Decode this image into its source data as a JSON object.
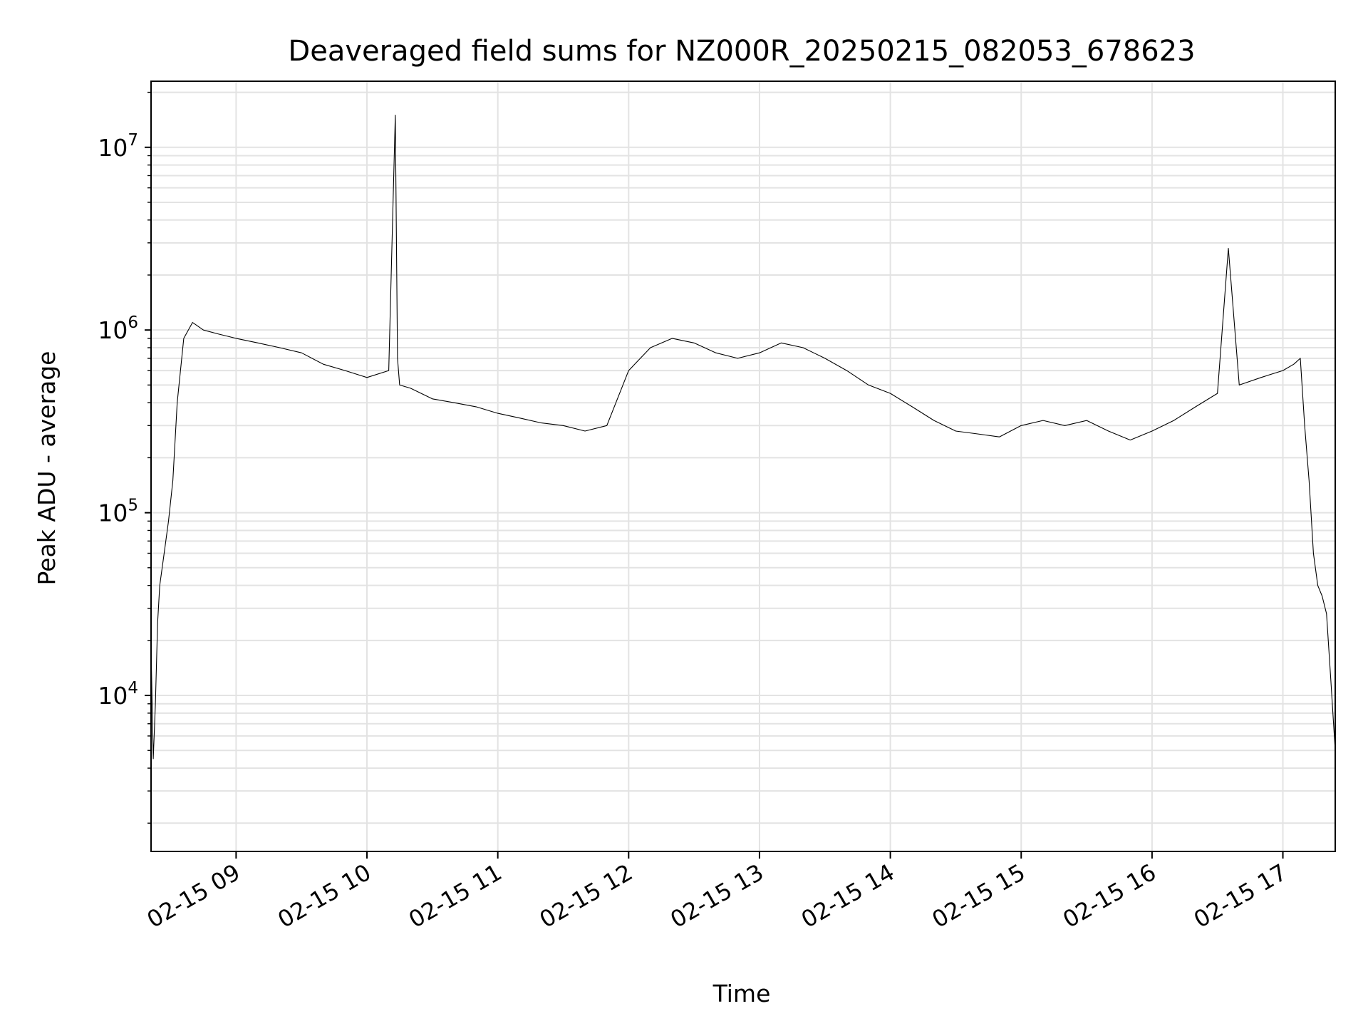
{
  "chart_data": {
    "type": "line",
    "title": "Deaveraged field sums for NZ000R_20250215_082053_678623",
    "xlabel": "Time",
    "ylabel": "Peak ADU - average",
    "x_scale": "time",
    "y_scale": "log",
    "xlim": [
      "2025-02-15 08:21",
      "2025-02-15 17:24"
    ],
    "ylim": [
      1400,
      23000000
    ],
    "x_ticks": [
      {
        "time": "2025-02-15 09:00",
        "label": "02-15 09"
      },
      {
        "time": "2025-02-15 10:00",
        "label": "02-15 10"
      },
      {
        "time": "2025-02-15 11:00",
        "label": "02-15 11"
      },
      {
        "time": "2025-02-15 12:00",
        "label": "02-15 12"
      },
      {
        "time": "2025-02-15 13:00",
        "label": "02-15 13"
      },
      {
        "time": "2025-02-15 14:00",
        "label": "02-15 14"
      },
      {
        "time": "2025-02-15 15:00",
        "label": "02-15 15"
      },
      {
        "time": "2025-02-15 16:00",
        "label": "02-15 16"
      },
      {
        "time": "2025-02-15 17:00",
        "label": "02-15 17"
      }
    ],
    "y_ticks": [
      {
        "value": 10000,
        "base": "10",
        "exp": "4"
      },
      {
        "value": 100000,
        "base": "10",
        "exp": "5"
      },
      {
        "value": 1000000,
        "base": "10",
        "exp": "6"
      },
      {
        "value": 10000000,
        "base": "10",
        "exp": "7"
      }
    ],
    "grid": true,
    "line_color": "#000000",
    "series": [
      {
        "x": [
          "08:21",
          "08:22",
          "08:23",
          "08:24",
          "08:25",
          "08:27",
          "08:29",
          "08:31",
          "08:33",
          "08:36",
          "08:40",
          "08:45",
          "08:52",
          "09:00",
          "09:10",
          "09:20",
          "09:30",
          "09:40",
          "09:50",
          "10:00",
          "10:10",
          "10:13",
          "10:14",
          "10:15",
          "10:20",
          "10:30",
          "10:40",
          "10:50",
          "11:00",
          "11:10",
          "11:20",
          "11:30",
          "11:40",
          "11:50",
          "12:00",
          "12:10",
          "12:20",
          "12:30",
          "12:40",
          "12:50",
          "13:00",
          "13:10",
          "13:20",
          "13:30",
          "13:40",
          "13:50",
          "14:00",
          "14:10",
          "14:20",
          "14:30",
          "14:40",
          "14:50",
          "15:00",
          "15:10",
          "15:20",
          "15:30",
          "15:40",
          "15:50",
          "16:00",
          "16:10",
          "16:20",
          "16:30",
          "16:35",
          "16:40",
          "16:50",
          "17:00",
          "17:05",
          "17:08",
          "17:10",
          "17:12",
          "17:14",
          "17:16",
          "17:18",
          "17:20",
          "17:22",
          "17:24"
        ],
        "y": [
          18000,
          4500,
          9000,
          25000,
          40000,
          60000,
          90000,
          150000,
          400000,
          900000,
          1100000,
          1000000,
          950000,
          900000,
          850000,
          800000,
          750000,
          650000,
          600000,
          550000,
          600000,
          15000000,
          700000,
          500000,
          480000,
          420000,
          400000,
          380000,
          350000,
          330000,
          310000,
          300000,
          280000,
          300000,
          600000,
          800000,
          900000,
          850000,
          750000,
          700000,
          750000,
          850000,
          800000,
          700000,
          600000,
          500000,
          450000,
          380000,
          320000,
          280000,
          270000,
          260000,
          300000,
          320000,
          300000,
          320000,
          280000,
          250000,
          280000,
          320000,
          380000,
          450000,
          2800000,
          500000,
          550000,
          600000,
          650000,
          700000,
          300000,
          150000,
          60000,
          40000,
          35000,
          28000,
          12000,
          5000
        ]
      }
    ]
  }
}
